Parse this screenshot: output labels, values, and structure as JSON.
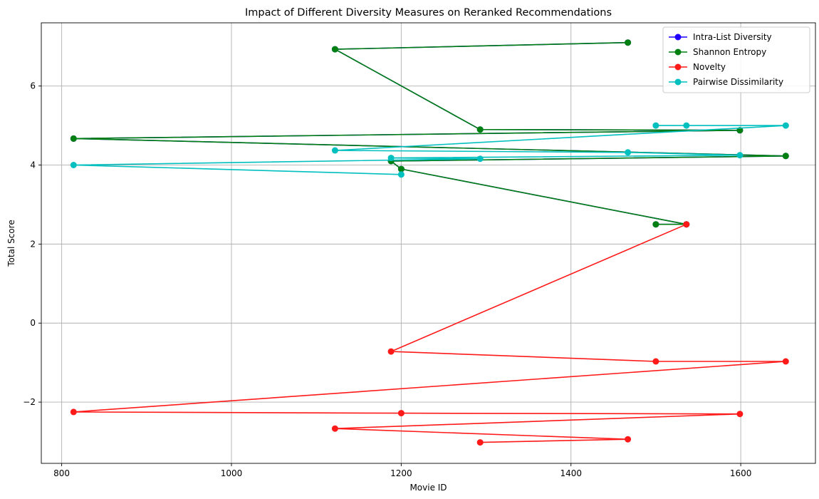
{
  "chart_data": {
    "type": "line",
    "title": "Impact of Different Diversity Measures on Reranked Recommendations",
    "xlabel": "Movie ID",
    "ylabel": "Total Score",
    "xlim": [
      776,
      1688
    ],
    "ylim": [
      -3.55,
      7.6
    ],
    "xticks": [
      800,
      1000,
      1200,
      1400,
      1600
    ],
    "yticks": [
      -2,
      0,
      2,
      4,
      6
    ],
    "grid": true,
    "legend_position": "top-right",
    "series": [
      {
        "name": "Intra-List Diversity",
        "color": "#1f00ff",
        "x": [
          1467,
          1122,
          1293,
          1599,
          814,
          1653,
          1188,
          1200,
          1536,
          1500
        ],
        "y": [
          7.1,
          6.93,
          4.9,
          4.88,
          4.67,
          4.23,
          4.1,
          3.9,
          2.5,
          2.5
        ]
      },
      {
        "name": "Shannon Entropy",
        "color": "#008010",
        "x": [
          1467,
          1122,
          1293,
          1599,
          814,
          1653,
          1188,
          1200,
          1536,
          1500
        ],
        "y": [
          7.1,
          6.93,
          4.9,
          4.88,
          4.67,
          4.23,
          4.1,
          3.9,
          2.5,
          2.5
        ]
      },
      {
        "name": "Novelty",
        "color": "#ff1a1a",
        "x": [
          1536,
          1188,
          1500,
          1653,
          814,
          1200,
          1599,
          1122,
          1467,
          1293
        ],
        "y": [
          2.5,
          -0.72,
          -0.97,
          -0.97,
          -2.25,
          -2.28,
          -2.3,
          -2.67,
          -2.94,
          -3.02
        ]
      },
      {
        "name": "Pairwise Dissimilarity",
        "color": "#00bfbf",
        "x": [
          1500,
          1536,
          1653,
          1122,
          1467,
          1599,
          1188,
          1293,
          814,
          1200
        ],
        "y": [
          5.0,
          5.0,
          5.0,
          4.37,
          4.32,
          4.25,
          4.18,
          4.16,
          4.0,
          3.76
        ]
      }
    ]
  }
}
